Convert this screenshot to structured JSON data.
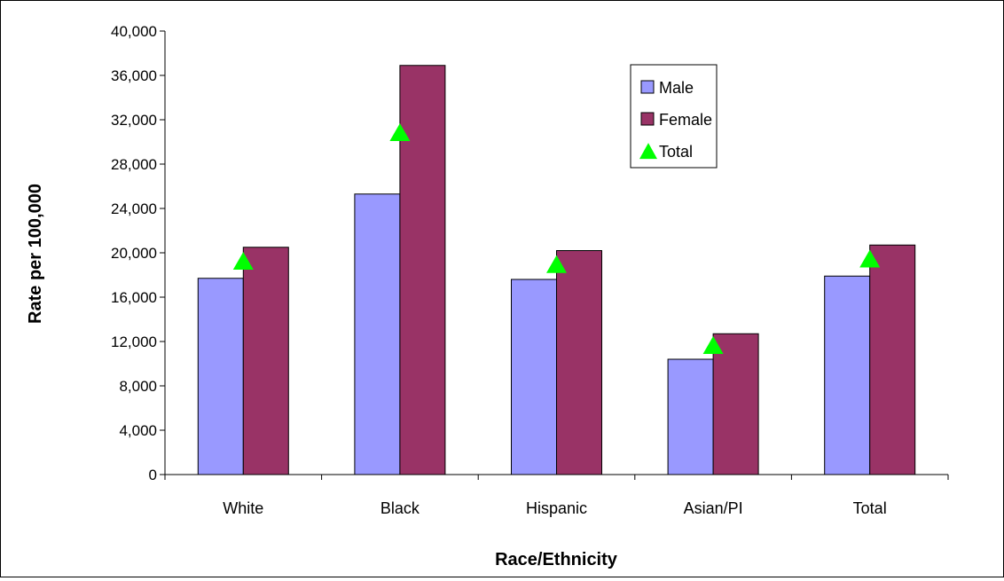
{
  "chart_data": {
    "type": "bar",
    "title": "",
    "xlabel": "Race/Ethnicity",
    "ylabel": "Rate per 100,000",
    "ylim": [
      0,
      40000
    ],
    "yticks": [
      0,
      4000,
      8000,
      12000,
      16000,
      20000,
      24000,
      28000,
      32000,
      36000,
      40000
    ],
    "ytick_labels": [
      "0",
      "4,000",
      "8,000",
      "12,000",
      "16,000",
      "20,000",
      "24,000",
      "28,000",
      "32,000",
      "36,000",
      "40,000"
    ],
    "categories": [
      "White",
      "Black",
      "Hispanic",
      "Asian/PI",
      "Total"
    ],
    "series": [
      {
        "name": "Male",
        "kind": "bar",
        "color": "#9999ff",
        "values": [
          17700,
          25300,
          17600,
          10400,
          17900
        ]
      },
      {
        "name": "Female",
        "kind": "bar",
        "color": "#993366",
        "values": [
          20500,
          36900,
          20200,
          12700,
          20700
        ]
      },
      {
        "name": "Total",
        "kind": "marker-triangle",
        "color": "#00ff00",
        "values": [
          19200,
          30800,
          18900,
          11600,
          19400
        ]
      }
    ],
    "grid": false,
    "legend": {
      "position": "top-right-inside"
    }
  }
}
